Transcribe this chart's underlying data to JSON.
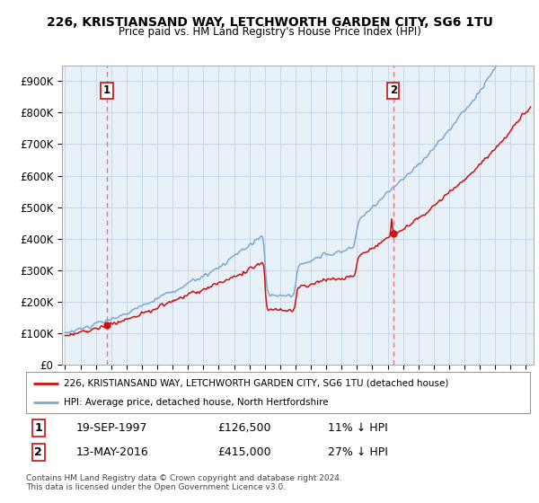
{
  "title": "226, KRISTIANSAND WAY, LETCHWORTH GARDEN CITY, SG6 1TU",
  "subtitle": "Price paid vs. HM Land Registry's House Price Index (HPI)",
  "ylabel_ticks": [
    "£0",
    "£100K",
    "£200K",
    "£300K",
    "£400K",
    "£500K",
    "£600K",
    "£700K",
    "£800K",
    "£900K"
  ],
  "ytick_values": [
    0,
    100000,
    200000,
    300000,
    400000,
    500000,
    600000,
    700000,
    800000,
    900000
  ],
  "ylim": [
    0,
    950000
  ],
  "xlim_start": 1994.8,
  "xlim_end": 2025.5,
  "sale1_date": 1997.72,
  "sale1_price": 126500,
  "sale1_label": "1",
  "sale2_date": 2016.36,
  "sale2_price": 415000,
  "sale2_label": "2",
  "hpi_color": "#7aa8d4",
  "price_color": "#cc1111",
  "dashed_color": "#e87878",
  "legend_house": "226, KRISTIANSAND WAY, LETCHWORTH GARDEN CITY, SG6 1TU (detached house)",
  "legend_hpi": "HPI: Average price, detached house, North Hertfordshire",
  "table_row1": [
    "1",
    "19-SEP-1997",
    "£126,500",
    "11% ↓ HPI"
  ],
  "table_row2": [
    "2",
    "13-MAY-2016",
    "£415,000",
    "27% ↓ HPI"
  ],
  "footer": "Contains HM Land Registry data © Crown copyright and database right 2024.\nThis data is licensed under the Open Government Licence v3.0.",
  "background_color": "#ffffff",
  "plot_bg_color": "#e8f0f8",
  "grid_color": "#c8d8e8"
}
